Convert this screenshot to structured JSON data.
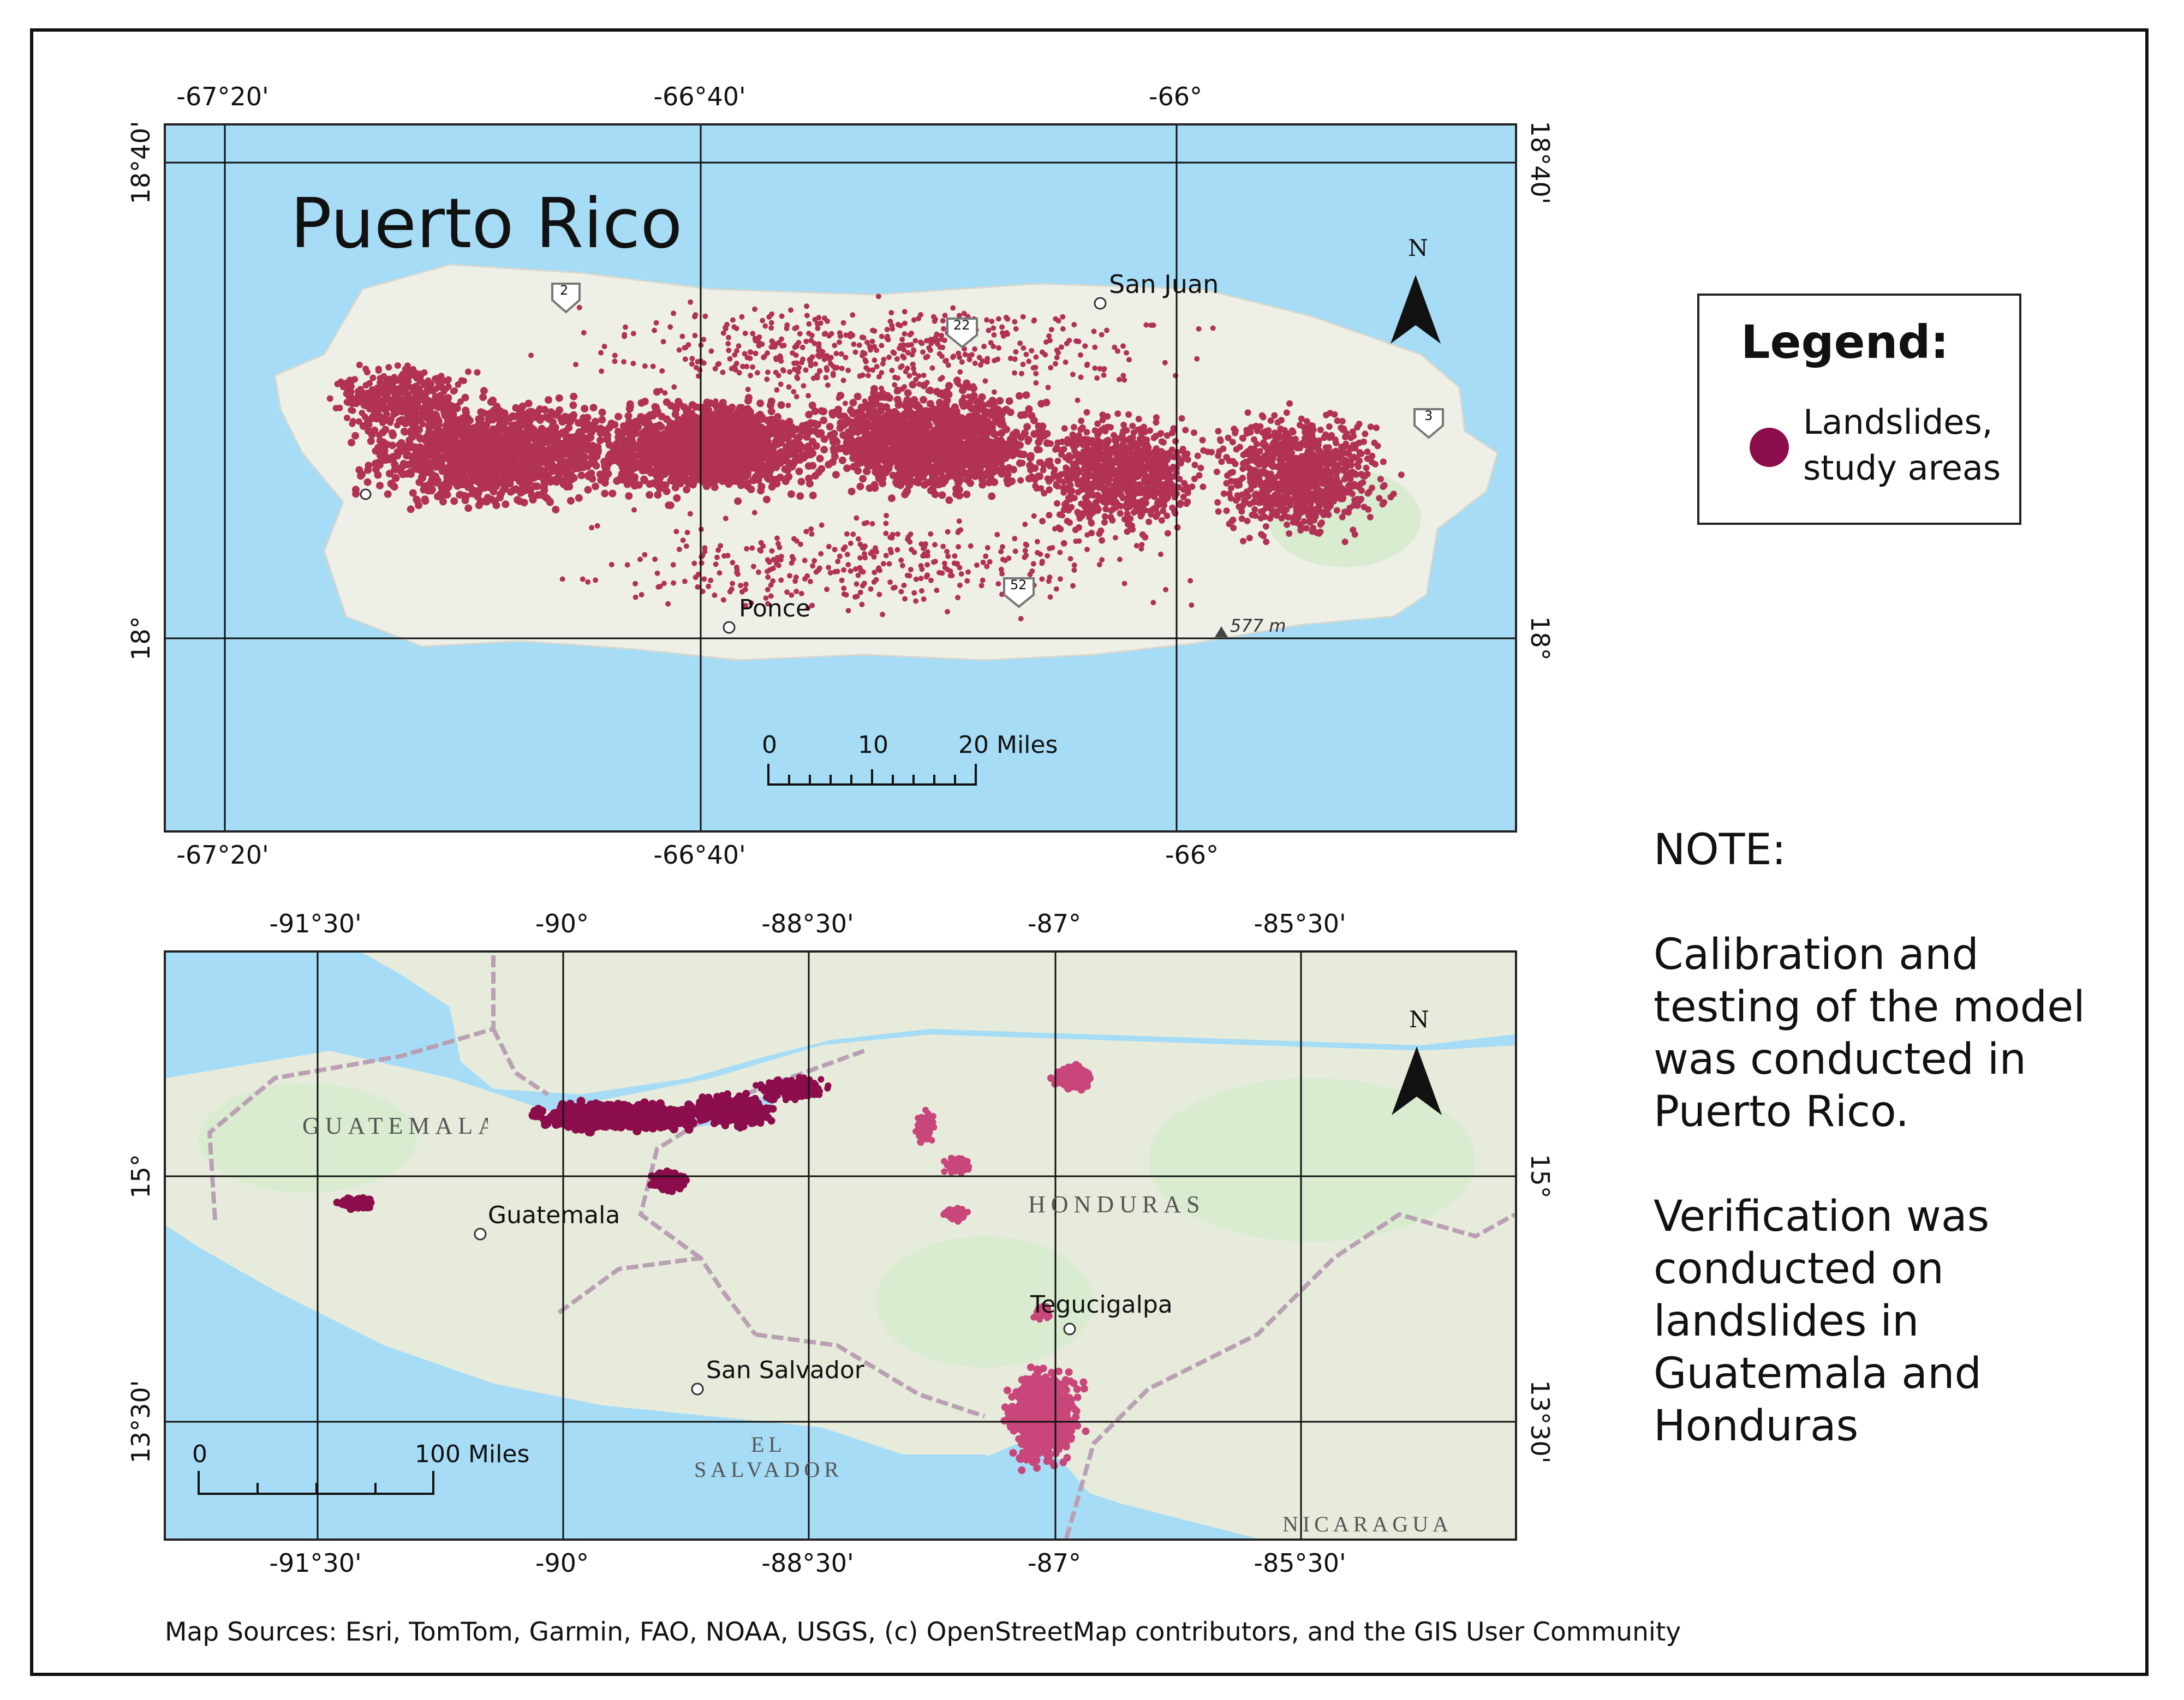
{
  "colors": {
    "water": "#a6dcf5",
    "land": "#eef0e8",
    "land_green": "#d9eccf",
    "landslide": "#b23256",
    "landslide_dark": "#8c0d4b",
    "graticule": "#111111",
    "border": "#b9a0b3"
  },
  "puerto_rico_map": {
    "title": "Puerto Rico",
    "top_coords": [
      "-67°20'",
      "-66°40'",
      "-66°"
    ],
    "bottom_coords": [
      "-67°20'",
      "-66°40'",
      "-66°"
    ],
    "left_coords": [
      "18°40'",
      "18°"
    ],
    "right_coords": [
      "18°40'",
      "18°"
    ],
    "places": [
      "San Juan",
      "Ponce"
    ],
    "highway_shields": [
      "2",
      "22",
      "52",
      "3"
    ],
    "peak_label": "577 m",
    "north_arrow": "N",
    "scale_ticks": [
      "0",
      "10",
      "20 Miles"
    ]
  },
  "central_america_map": {
    "top_coords": [
      "-91°30'",
      "-90°",
      "-88°30'",
      "-87°",
      "-85°30'"
    ],
    "bottom_coords": [
      "-91°30'",
      "-90°",
      "-88°30'",
      "-87°",
      "-85°30'"
    ],
    "left_coords": [
      "15°",
      "13°30'"
    ],
    "right_coords": [
      "15°",
      "13°30'"
    ],
    "countries": [
      "GUATEMALA",
      "HONDURAS",
      "EL",
      "SALVADOR",
      "NICARAGUA"
    ],
    "cities": [
      "Guatemala",
      "San Salvador",
      "Tegucigalpa"
    ],
    "north_arrow": "N",
    "scale_ticks": [
      "0",
      "100 Miles"
    ]
  },
  "legend": {
    "title": "Legend:",
    "item_line1": "Landslides,",
    "item_line2": "study areas"
  },
  "note": {
    "heading": "NOTE:",
    "para1": "Calibration and\ntesting of the model\nwas conducted in\nPuerto Rico.",
    "para2": "Verification was\nconducted on\nlandslides in\nGuatemala and\nHonduras"
  },
  "sources": "Map Sources:  Esri, TomTom, Garmin, FAO, NOAA, USGS, (c) OpenStreetMap contributors, and the GIS User Community"
}
